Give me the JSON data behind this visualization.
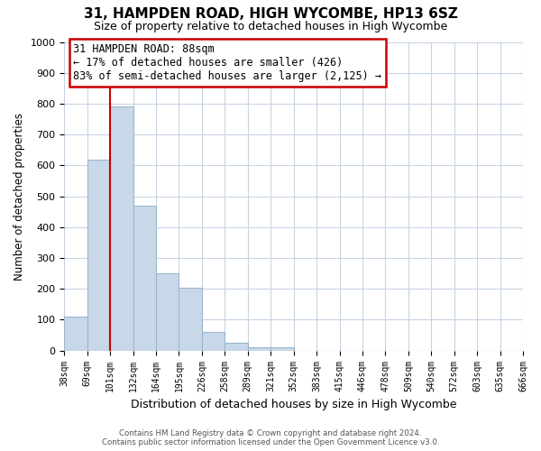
{
  "title": "31, HAMPDEN ROAD, HIGH WYCOMBE, HP13 6SZ",
  "subtitle": "Size of property relative to detached houses in High Wycombe",
  "xlabel": "Distribution of detached houses by size in High Wycombe",
  "ylabel": "Number of detached properties",
  "bar_values": [
    110,
    620,
    790,
    470,
    250,
    205,
    60,
    25,
    12,
    10,
    0,
    0,
    0,
    0,
    0,
    0,
    0,
    0,
    0,
    0
  ],
  "bar_labels": [
    "38sqm",
    "69sqm",
    "101sqm",
    "132sqm",
    "164sqm",
    "195sqm",
    "226sqm",
    "258sqm",
    "289sqm",
    "321sqm",
    "352sqm",
    "383sqm",
    "415sqm",
    "446sqm",
    "478sqm",
    "509sqm",
    "540sqm",
    "572sqm",
    "603sqm",
    "635sqm",
    "666sqm"
  ],
  "bar_color": "#c8d8e8",
  "bar_edge_color": "#9ab8cc",
  "vline_color": "#cc0000",
  "ylim": [
    0,
    1000
  ],
  "yticks": [
    0,
    100,
    200,
    300,
    400,
    500,
    600,
    700,
    800,
    900,
    1000
  ],
  "annotation_title": "31 HAMPDEN ROAD: 88sqm",
  "annotation_line1": "← 17% of detached houses are smaller (426)",
  "annotation_line2": "83% of semi-detached houses are larger (2,125) →",
  "annotation_box_color": "#ffffff",
  "annotation_box_edge": "#cc0000",
  "footer1": "Contains HM Land Registry data © Crown copyright and database right 2024.",
  "footer2": "Contains public sector information licensed under the Open Government Licence v3.0.",
  "background_color": "#ffffff",
  "grid_color": "#c8d4e4"
}
